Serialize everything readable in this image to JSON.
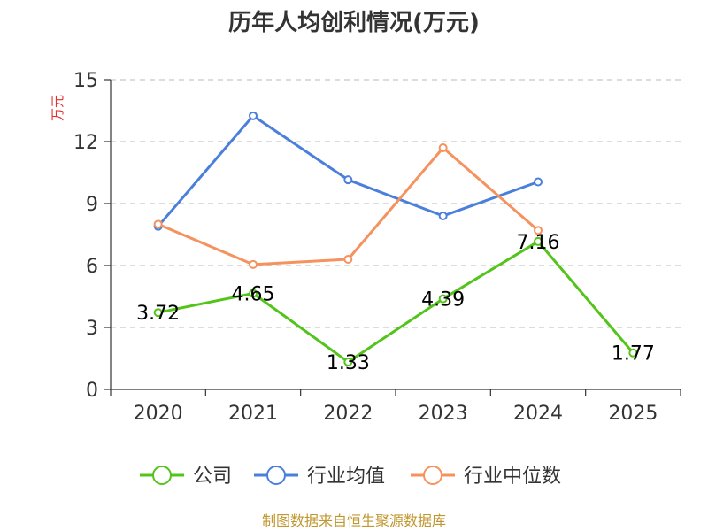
{
  "chart_data": {
    "type": "line",
    "title": "历年人均创利情况(万元)",
    "ylabel": "万元",
    "xlabel": "",
    "categories": [
      "2020",
      "2021",
      "2022",
      "2023",
      "2024",
      "2025"
    ],
    "ylim": [
      0,
      15
    ],
    "yticks": [
      0,
      3,
      6,
      9,
      12,
      15
    ],
    "grid": true,
    "legend_position": "bottom",
    "series": [
      {
        "name": "公司",
        "color": "#52c41a",
        "values": [
          3.72,
          4.65,
          1.33,
          4.39,
          7.16,
          1.77
        ],
        "labels": [
          "3.72",
          "4.65",
          "1.33",
          "4.39",
          "7.16",
          "1.77"
        ]
      },
      {
        "name": "行业均值",
        "color": "#4a7fdb",
        "values": [
          7.9,
          13.25,
          10.15,
          8.4,
          10.05,
          null
        ]
      },
      {
        "name": "行业中位数",
        "color": "#f5925e",
        "values": [
          8.0,
          6.05,
          6.3,
          11.7,
          7.7,
          null
        ]
      }
    ],
    "source": "制图数据来自恒生聚源数据库"
  }
}
